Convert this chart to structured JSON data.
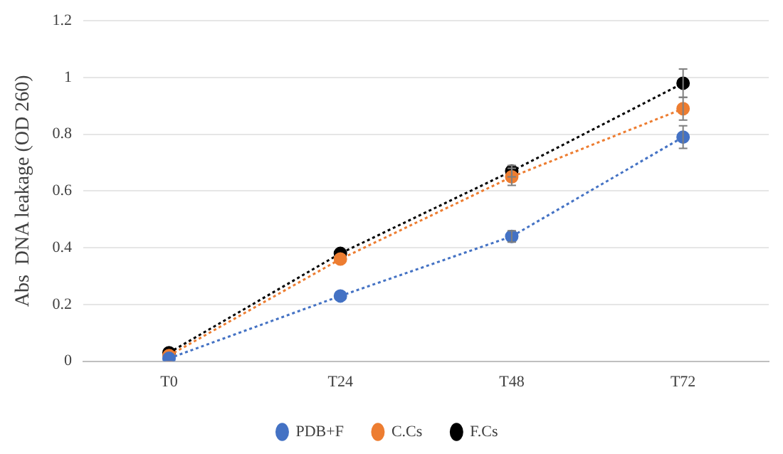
{
  "chart_data": {
    "type": "line",
    "ylabel": "Abs  DNA leakage (OD 260)",
    "categories": [
      "T0",
      "T24",
      "T48",
      "T72"
    ],
    "series": [
      {
        "name": "PDB+F",
        "color": "#4472c4",
        "values": [
          0.01,
          0.23,
          0.44,
          0.79
        ],
        "errors": [
          null,
          null,
          0.02,
          0.04
        ]
      },
      {
        "name": "C.Cs",
        "color": "#ed7d31",
        "values": [
          0.02,
          0.36,
          0.65,
          0.89
        ],
        "errors": [
          null,
          null,
          0.03,
          0.04
        ]
      },
      {
        "name": "F.Cs",
        "color": "#000000",
        "values": [
          0.03,
          0.38,
          0.67,
          0.98
        ],
        "errors": [
          null,
          null,
          0.02,
          0.05
        ]
      }
    ],
    "ylim": [
      0,
      1.2
    ],
    "yticks": [
      0,
      0.2,
      0.4,
      0.6,
      0.8,
      1,
      1.2
    ],
    "grid": "y",
    "legend": "bottom",
    "marker": "circle",
    "line_style": "dotted"
  }
}
